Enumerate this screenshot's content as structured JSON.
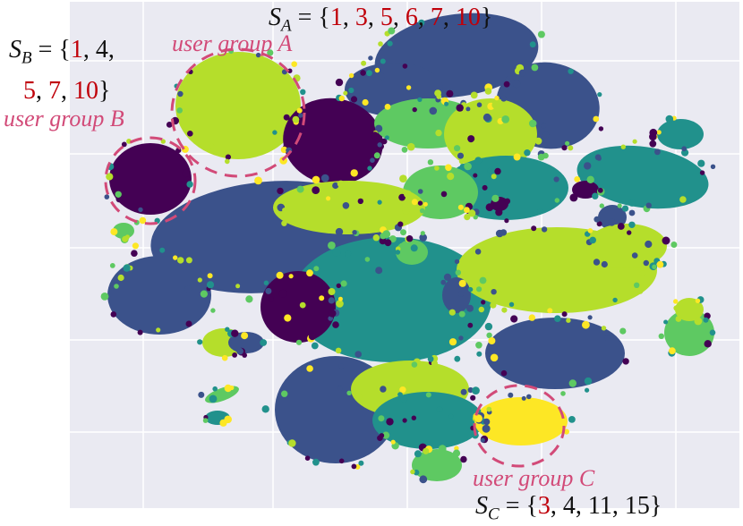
{
  "chart_data": {
    "type": "scatter",
    "title": "",
    "xlabel": "",
    "ylabel": "",
    "grid": true,
    "colormap": "viridis",
    "colors": {
      "background": "#eaeaf2",
      "grid": "#ffffff",
      "ellipse": "#d24a78",
      "highlight_numbers": "#c0000a",
      "clusters": [
        "#440154",
        "#3b528b",
        "#21918c",
        "#5ec962",
        "#b5de2b",
        "#fde725"
      ]
    },
    "annotations": [
      {
        "name": "user group A",
        "set_label": "S_A",
        "members": [
          "1",
          "3",
          "5",
          "6",
          "7",
          "10"
        ],
        "highlighted": [
          "1",
          "3",
          "5",
          "6",
          "7",
          "10"
        ]
      },
      {
        "name": "user group B",
        "set_label": "S_B",
        "members": [
          "1",
          "4",
          "5",
          "7",
          "10"
        ],
        "highlighted": [
          "1",
          "5",
          "7",
          "10"
        ]
      },
      {
        "name": "user group C",
        "set_label": "S_C",
        "members": [
          "3",
          "4",
          "11",
          "15"
        ],
        "highlighted": [
          "3"
        ]
      }
    ]
  },
  "labels": {
    "group_a": "user group A",
    "group_b": "user group B",
    "group_c": "user group C",
    "sa_base": "S",
    "sa_sub": "A",
    "sb_base": "S",
    "sb_sub": "B",
    "sc_base": "S",
    "sc_sub": "C",
    "eq": " = {",
    "close": "}",
    "comma": ", ",
    "sa_1": "1",
    "sa_2": "3",
    "sa_3": "5",
    "sa_4": "6",
    "sa_5": "7",
    "sa_6": "10",
    "sb_1": "1",
    "sb_2": "4",
    "sb_3": "5",
    "sb_4": "7",
    "sb_5": "10",
    "sc_1": "3",
    "sc_2": "4",
    "sc_3": "11",
    "sc_4": "15"
  }
}
